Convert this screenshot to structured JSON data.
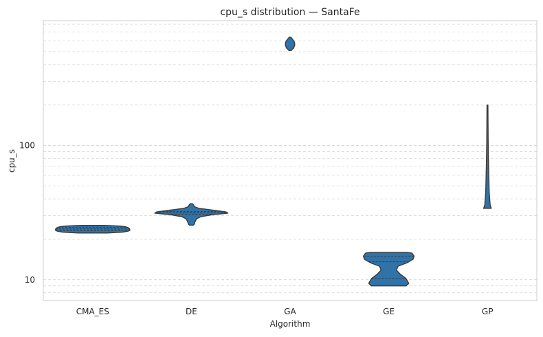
{
  "chart_data": {
    "type": "violin",
    "title": "cpu_s distribution — SantaFe",
    "xlabel": "Algorithm",
    "ylabel": "cpu_s",
    "yscale": "log",
    "ylim": [
      7,
      850
    ],
    "ytick_values": [
      10,
      100
    ],
    "ytick_labels": [
      "10",
      "100"
    ],
    "grid": true,
    "categories": [
      "CMA_ES",
      "DE",
      "GA",
      "GE",
      "GP"
    ],
    "fill_color": "#2f73a8",
    "series": [
      {
        "category": "CMA_ES",
        "profile": [
          [
            22.3,
            0.38
          ],
          [
            22.6,
            0.78
          ],
          [
            23.0,
            0.92
          ],
          [
            23.4,
            0.97
          ],
          [
            23.9,
            0.96
          ],
          [
            24.4,
            0.93
          ],
          [
            24.8,
            0.86
          ],
          [
            25.1,
            0.72
          ],
          [
            25.3,
            0.48
          ],
          [
            25.4,
            0.3
          ]
        ],
        "quartiles": [
          23.2,
          23.9,
          24.6
        ]
      },
      {
        "category": "DE",
        "profile": [
          [
            25.5,
            0.05
          ],
          [
            26.0,
            0.08
          ],
          [
            26.8,
            0.09
          ],
          [
            27.5,
            0.11
          ],
          [
            28.5,
            0.14
          ],
          [
            29.5,
            0.25
          ],
          [
            30.5,
            0.55
          ],
          [
            31.3,
            0.95
          ],
          [
            32.0,
            0.9
          ],
          [
            33.0,
            0.55
          ],
          [
            34.0,
            0.2
          ],
          [
            35.0,
            0.08
          ],
          [
            36.0,
            0.06
          ],
          [
            36.8,
            0.03
          ]
        ],
        "quartiles": [
          30.8,
          31.5,
          32.2
        ]
      },
      {
        "category": "GA",
        "profile": [
          [
            510,
            0.03
          ],
          [
            530,
            0.09
          ],
          [
            555,
            0.12
          ],
          [
            580,
            0.12
          ],
          [
            600,
            0.1
          ],
          [
            625,
            0.05
          ],
          [
            640,
            0.02
          ]
        ],
        "quartiles": []
      },
      {
        "category": "GE",
        "profile": [
          [
            9.0,
            0.45
          ],
          [
            9.4,
            0.52
          ],
          [
            10.2,
            0.45
          ],
          [
            11.0,
            0.3
          ],
          [
            11.8,
            0.2
          ],
          [
            12.6,
            0.24
          ],
          [
            13.4,
            0.48
          ],
          [
            14.2,
            0.63
          ],
          [
            15.0,
            0.66
          ],
          [
            15.8,
            0.6
          ],
          [
            16.0,
            0.48
          ]
        ],
        "quartiles": [
          10.2,
          13.6,
          14.8
        ]
      },
      {
        "category": "GP",
        "profile": [
          [
            34,
            0.1
          ],
          [
            36,
            0.07
          ],
          [
            45,
            0.045
          ],
          [
            60,
            0.035
          ],
          [
            80,
            0.025
          ],
          [
            110,
            0.018
          ],
          [
            150,
            0.015
          ],
          [
            200,
            0.012
          ]
        ],
        "quartiles": []
      }
    ]
  }
}
